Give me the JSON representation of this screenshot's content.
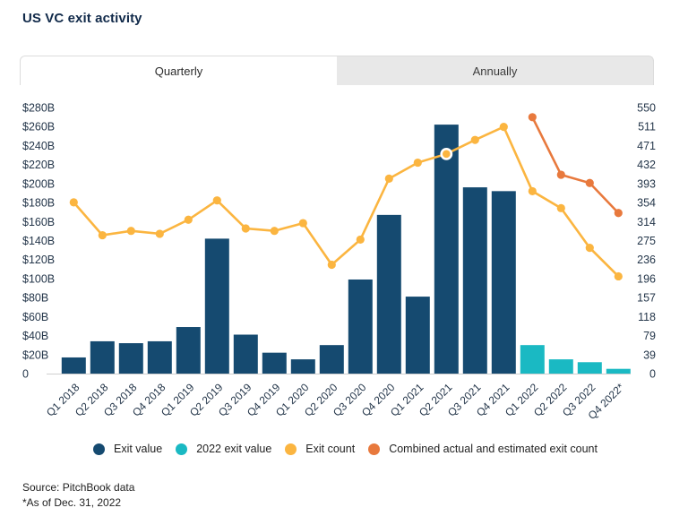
{
  "page": {
    "title": "US VC exit activity"
  },
  "tabs": [
    {
      "label": "Quarterly",
      "active": true
    },
    {
      "label": "Annually",
      "active": false
    }
  ],
  "chart_data": {
    "type": "combo bar + line",
    "title": "US VC exit activity (Quarterly)",
    "grid": false,
    "legend_position": "bottom",
    "categories": [
      "Q1 2018",
      "Q2 2018",
      "Q3 2018",
      "Q4 2018",
      "Q1 2019",
      "Q2 2019",
      "Q3 2019",
      "Q4 2019",
      "Q1 2020",
      "Q2 2020",
      "Q3 2020",
      "Q4 2020",
      "Q1 2021",
      "Q2 2021",
      "Q3 2021",
      "Q4 2021",
      "Q1 2022",
      "Q2 2022",
      "Q3 2022",
      "Q4 2022*"
    ],
    "left_axis": {
      "unit": "USD billions",
      "max": 280,
      "ticks": [
        "$280B",
        "$260B",
        "$240B",
        "$220B",
        "$200B",
        "$180B",
        "$160B",
        "$140B",
        "$120B",
        "$100B",
        "$80B",
        "$60B",
        "$40B",
        "$20B",
        "0"
      ]
    },
    "right_axis": {
      "unit": "exit count",
      "max": 550,
      "ticks": [
        "550",
        "511",
        "471",
        "432",
        "393",
        "354",
        "314",
        "275",
        "236",
        "196",
        "157",
        "118",
        "79",
        "39",
        "0"
      ]
    },
    "series": [
      {
        "name": "Exit value",
        "type": "bar",
        "axis": "left",
        "color": "#154a70",
        "values": [
          17,
          34,
          32,
          34,
          49,
          142,
          41,
          22,
          15,
          30,
          99,
          167,
          81,
          262,
          196,
          192,
          null,
          null,
          null,
          null
        ]
      },
      {
        "name": "2022 exit value",
        "type": "bar",
        "axis": "left",
        "color": "#1ab9c3",
        "values": [
          null,
          null,
          null,
          null,
          null,
          null,
          null,
          null,
          null,
          null,
          null,
          null,
          null,
          null,
          null,
          null,
          30,
          15,
          12,
          5
        ]
      },
      {
        "name": "Exit count",
        "type": "line",
        "axis": "right",
        "color": "#fbb540",
        "highlight_index": 13,
        "values": [
          354,
          286,
          295,
          289,
          318,
          358,
          300,
          295,
          311,
          225,
          277,
          403,
          436,
          454,
          483,
          510,
          377,
          342,
          260,
          201
        ]
      },
      {
        "name": "Combined actual and estimated exit count",
        "type": "line",
        "axis": "right",
        "color": "#e8793d",
        "values": [
          null,
          null,
          null,
          null,
          null,
          null,
          null,
          null,
          null,
          null,
          null,
          null,
          null,
          null,
          null,
          null,
          530,
          411,
          394,
          332
        ]
      }
    ],
    "highlight": {
      "series": "Exit count",
      "category": "Q2 2021",
      "value": 454
    }
  },
  "legend": [
    {
      "label": "Exit value",
      "color": "#154a70"
    },
    {
      "label": "2022 exit value",
      "color": "#1ab9c3"
    },
    {
      "label": "Exit count",
      "color": "#fbb540"
    },
    {
      "label": "Combined actual and estimated exit count",
      "color": "#e8793d"
    }
  ],
  "footer": {
    "source": "Source: PitchBook data",
    "note": "*As of Dec. 31, 2022"
  }
}
